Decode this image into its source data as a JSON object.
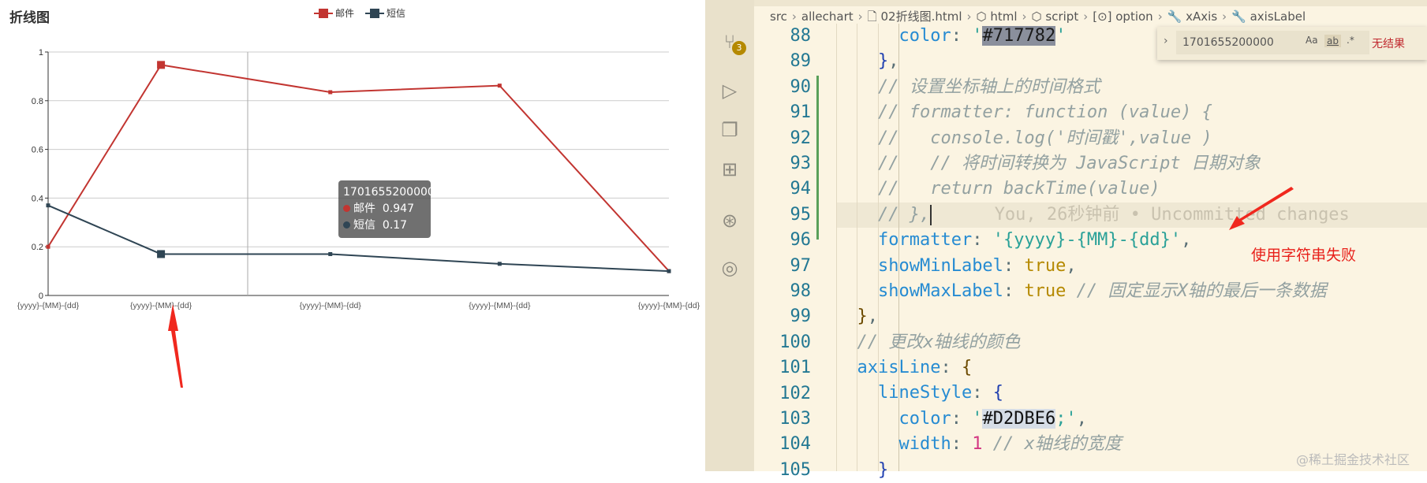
{
  "chart_data": {
    "type": "line",
    "title": "折线图",
    "x_type": "time",
    "x": [
      1701482400000,
      1701655200000,
      1701914400000,
      1702173600000,
      1702432800000
    ],
    "x_tick_labels": [
      "{yyyy}-{MM}-{dd}",
      "{yyyy}-{MM}-{dd}",
      "{yyyy}-{MM}-{dd}",
      "{yyyy}-{MM}-{dd}",
      "{yyyy}-{MM}-{dd}"
    ],
    "y_ticks": [
      "0",
      "0.2",
      "0.4",
      "0.6",
      "0.8",
      "1"
    ],
    "ylim": [
      0,
      1
    ],
    "grid": true,
    "legend_position": "top-center",
    "series": [
      {
        "name": "邮件",
        "color": "#c23531",
        "values": [
          0.2,
          0.947,
          0.835,
          0.862,
          0.1
        ]
      },
      {
        "name": "短信",
        "color": "#2f4554",
        "values": [
          0.37,
          0.17,
          0.17,
          0.13,
          0.1
        ]
      }
    ],
    "tooltip": {
      "title": "1701655200000",
      "rows": [
        {
          "name": "邮件",
          "value": "0.947"
        },
        {
          "name": "短信",
          "value": "0.17"
        }
      ]
    }
  },
  "editor": {
    "breadcrumb": [
      "src",
      "allechart",
      "02折线图.html",
      "html",
      "script",
      "option",
      "xAxis",
      "axisLabel"
    ],
    "scm_badge": "3",
    "find": {
      "query": "1701655200000",
      "case": "Aa",
      "word": "ab",
      "regex": ".*",
      "result": "无结果"
    },
    "line_numbers": [
      "88",
      "89",
      "90",
      "91",
      "92",
      "93",
      "94",
      "95",
      "96",
      "97",
      "98",
      "99",
      "100",
      "101",
      "102",
      "103",
      "104",
      "105"
    ],
    "lines": [
      [
        [
          "      ",
          "k"
        ],
        [
          "color",
          "p"
        ],
        [
          ": ",
          "k"
        ],
        [
          "'",
          "s"
        ],
        [
          "#717782",
          "hl"
        ],
        [
          "'",
          "s"
        ]
      ],
      [
        [
          "    ",
          "k"
        ],
        [
          "}",
          "bb"
        ],
        [
          ",",
          "k"
        ]
      ],
      [
        [
          "    ",
          "k"
        ],
        [
          "// 设置坐标轴上的时间格式",
          "c"
        ]
      ],
      [
        [
          "    ",
          "k"
        ],
        [
          "// formatter: function (value) {",
          "c"
        ]
      ],
      [
        [
          "    ",
          "k"
        ],
        [
          "//   console.log('时间戳',value )",
          "c"
        ]
      ],
      [
        [
          "    ",
          "k"
        ],
        [
          "//   // 将时间转换为 JavaScript 日期对象",
          "c"
        ]
      ],
      [
        [
          "    ",
          "k"
        ],
        [
          "//   return backTime(value)",
          "c"
        ]
      ],
      [
        [
          "    ",
          "k"
        ],
        [
          "// },",
          "c"
        ],
        [
          "",
          "cursor"
        ],
        [
          "      You, 26秒钟前 • Uncommitted changes",
          "ghost"
        ]
      ],
      [
        [
          "    ",
          "k"
        ],
        [
          "formatter",
          "p"
        ],
        [
          ": ",
          "k"
        ],
        [
          "'{yyyy}-{MM}-{dd}'",
          "s"
        ],
        [
          ",",
          "k"
        ]
      ],
      [
        [
          "    ",
          "k"
        ],
        [
          "showMinLabel",
          "p"
        ],
        [
          ": ",
          "k"
        ],
        [
          "true",
          "b"
        ],
        [
          ",",
          "k"
        ]
      ],
      [
        [
          "    ",
          "k"
        ],
        [
          "showMaxLabel",
          "p"
        ],
        [
          ": ",
          "k"
        ],
        [
          "true",
          "b"
        ],
        [
          " // 固定显示X轴的最后一条数据",
          "c"
        ]
      ],
      [
        [
          "  ",
          "k"
        ],
        [
          "}",
          "br"
        ],
        [
          ",",
          "k"
        ]
      ],
      [
        [
          "  ",
          "k"
        ],
        [
          "// 更改x轴线的颜色",
          "c"
        ]
      ],
      [
        [
          "  ",
          "k"
        ],
        [
          "axisLine",
          "p"
        ],
        [
          ": ",
          "k"
        ],
        [
          "{",
          "br"
        ]
      ],
      [
        [
          "    ",
          "k"
        ],
        [
          "lineStyle",
          "p"
        ],
        [
          ": ",
          "k"
        ],
        [
          "{",
          "bb"
        ]
      ],
      [
        [
          "      ",
          "k"
        ],
        [
          "color",
          "p"
        ],
        [
          ": ",
          "k"
        ],
        [
          "'",
          "s"
        ],
        [
          "#D2DBE6",
          "hl2"
        ],
        [
          ";'",
          "s"
        ],
        [
          ",",
          "k"
        ]
      ],
      [
        [
          "      ",
          "k"
        ],
        [
          "width",
          "p"
        ],
        [
          ": ",
          "k"
        ],
        [
          "1",
          "n"
        ],
        [
          " // x轴线的宽度",
          "c"
        ]
      ],
      [
        [
          "    ",
          "k"
        ],
        [
          "}",
          "bb"
        ]
      ]
    ],
    "annotation": "使用字符串失败",
    "watermark": "@稀土掘金技术社区"
  }
}
